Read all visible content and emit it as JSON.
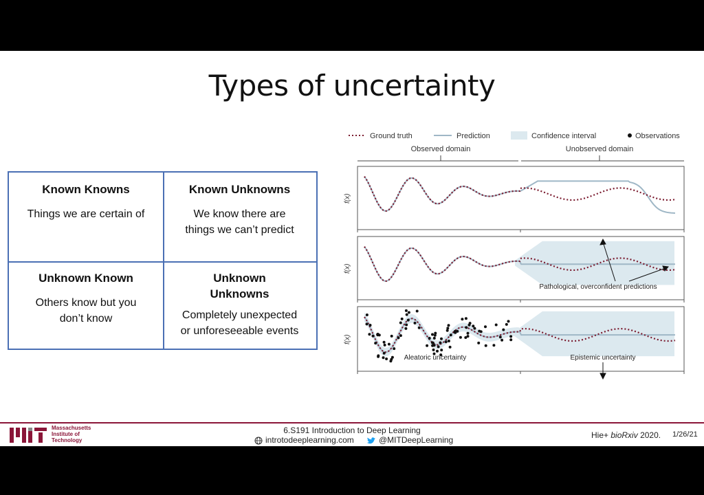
{
  "title": "Types of uncertainty",
  "grid": {
    "cells": [
      {
        "heading": "Known Knowns",
        "lines": [
          "Things we are certain of"
        ]
      },
      {
        "heading": "Known Unknowns",
        "lines": [
          "We know there are",
          "things we can’t predict"
        ]
      },
      {
        "heading": "Unknown Known",
        "lines": [
          "Others know but you",
          "don’t know"
        ]
      },
      {
        "heading_lines": [
          "Unknown",
          "Unknowns"
        ],
        "lines": [
          "Completely unexpected",
          "or unforeseeable events"
        ]
      }
    ]
  },
  "figure": {
    "legend": [
      "Ground truth",
      "Prediction",
      "Confidence interval",
      "Observations"
    ],
    "domains": [
      "Observed domain",
      "Unobserved domain"
    ],
    "ylabel": "f(x)",
    "annotations": [
      "Pathological, overconfident predictions",
      "Aleatoric uncertainty",
      "Epistemic uncertainty"
    ]
  },
  "chart_data": {
    "type": "line",
    "panels": 3,
    "series": [
      {
        "name": "Ground truth"
      },
      {
        "name": "Prediction"
      },
      {
        "name": "Confidence interval"
      },
      {
        "name": "Observations"
      }
    ],
    "xlabel": "",
    "ylabel": "f(x)"
  },
  "footer": {
    "institution": [
      "Massachusetts",
      "Institute of",
      "Technology"
    ],
    "course": "6.S191 Introduction to Deep Learning",
    "website": "introtodeeplearning.com",
    "twitter": "@MITDeepLearning",
    "citation_authors": "Hie+",
    "citation_venue": "bioRxiv",
    "citation_year": "2020.",
    "date": "1/26/21"
  },
  "colors": {
    "accent": "#8a1538",
    "grid_border": "#4a6fb4",
    "ground_truth": "#7a1a2e",
    "prediction": "#9fb7c6",
    "confidence": "#dce9ef"
  }
}
